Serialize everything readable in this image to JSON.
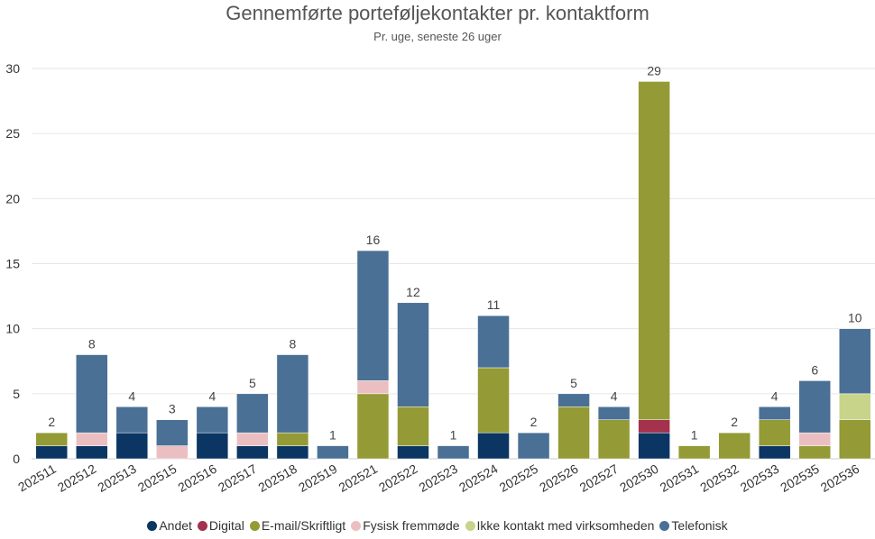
{
  "chart_data": {
    "type": "bar",
    "stacked": true,
    "title": "Gennemførte porteføljekontakter pr. kontaktform",
    "subtitle": "Pr. uge, seneste 26 uger",
    "xlabel": "",
    "ylabel": "",
    "ylim": [
      0,
      30
    ],
    "yticks": [
      0,
      5,
      10,
      15,
      20,
      25,
      30
    ],
    "grid": true,
    "legend_position": "bottom",
    "categories": [
      "202511",
      "202512",
      "202513",
      "202515",
      "202516",
      "202517",
      "202518",
      "202519",
      "202521",
      "202522",
      "202523",
      "202524",
      "202525",
      "202526",
      "202527",
      "202530",
      "202531",
      "202532",
      "202533",
      "202535",
      "202536"
    ],
    "series": [
      {
        "name": "Andet",
        "color": "#0b3663",
        "values": [
          1,
          1,
          2,
          0,
          2,
          1,
          1,
          0,
          0,
          1,
          0,
          2,
          0,
          0,
          0,
          2,
          0,
          0,
          1,
          0,
          0
        ]
      },
      {
        "name": "Digital",
        "color": "#a4314d",
        "values": [
          0,
          0,
          0,
          0,
          0,
          0,
          0,
          0,
          0,
          0,
          0,
          0,
          0,
          0,
          0,
          1,
          0,
          0,
          0,
          0,
          0
        ]
      },
      {
        "name": "E-mail/Skriftligt",
        "color": "#949a35",
        "values": [
          1,
          0,
          0,
          0,
          0,
          0,
          1,
          0,
          5,
          3,
          0,
          5,
          0,
          4,
          3,
          26,
          1,
          2,
          2,
          1,
          3
        ]
      },
      {
        "name": "Fysisk fremmøde",
        "color": "#ebbfc1",
        "values": [
          0,
          1,
          0,
          1,
          0,
          1,
          0,
          0,
          1,
          0,
          0,
          0,
          0,
          0,
          0,
          0,
          0,
          0,
          0,
          1,
          0
        ]
      },
      {
        "name": "Ikke kontakt med virksomheden",
        "color": "#c8d48a",
        "values": [
          0,
          0,
          0,
          0,
          0,
          0,
          0,
          0,
          0,
          0,
          0,
          0,
          0,
          0,
          0,
          0,
          0,
          0,
          0,
          0,
          2
        ]
      },
      {
        "name": "Telefonisk",
        "color": "#4a7095",
        "values": [
          0,
          6,
          2,
          2,
          2,
          3,
          6,
          1,
          10,
          8,
          1,
          4,
          2,
          1,
          1,
          0,
          0,
          0,
          1,
          4,
          5
        ]
      }
    ],
    "totals": [
      2,
      8,
      4,
      3,
      4,
      5,
      8,
      1,
      16,
      12,
      1,
      11,
      2,
      5,
      4,
      29,
      1,
      2,
      4,
      6,
      10
    ]
  }
}
